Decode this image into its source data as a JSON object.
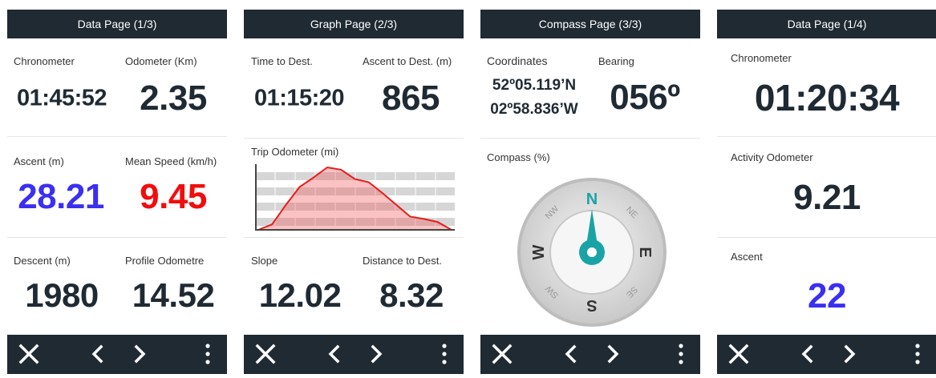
{
  "screens": [
    {
      "title": "Data Page (1/3)",
      "fields": [
        {
          "label": "Chronometer",
          "value": "01:45:52"
        },
        {
          "label": "Odometer (Km)",
          "value": "2.35"
        },
        {
          "label": "Ascent (m)",
          "value": "28.21"
        },
        {
          "label": "Mean Speed (km/h)",
          "value": "9.45"
        },
        {
          "label": "Descent (m)",
          "value": "1980"
        },
        {
          "label": "Profile Odometre",
          "value": "14.52"
        }
      ]
    },
    {
      "title": "Graph Page (2/3)",
      "fields": [
        {
          "label": "Time to Dest.",
          "value": "01:15:20"
        },
        {
          "label": "Ascent to Dest. (m)",
          "value": "865"
        },
        {
          "label": "Slope",
          "value": "12.02"
        },
        {
          "label": "Distance to Dest.",
          "value": "8.32"
        }
      ],
      "graph": {
        "label": "Trip Odometer (mi)",
        "values": [
          0,
          7,
          32,
          55,
          67,
          80,
          77,
          65,
          61,
          47,
          32,
          17,
          14,
          10,
          0
        ]
      }
    },
    {
      "title": "Compass Page (3/3)",
      "coordinates": {
        "label": "Coordinates",
        "lines": [
          "52º05.119’N",
          "02º58.836’W"
        ]
      },
      "bearing": {
        "label": "Bearing",
        "value": "056º"
      },
      "compass": {
        "label": "Compass (%)",
        "directions": [
          "N",
          "NE",
          "E",
          "SE",
          "S",
          "SW",
          "W",
          "NW"
        ]
      }
    },
    {
      "title": "Data Page (1/4)",
      "fields": [
        {
          "label": "Chronometer",
          "value": "01:20:34"
        },
        {
          "label": "Activity Odometer",
          "value": "9.21"
        },
        {
          "label": "Ascent",
          "value": "22"
        }
      ]
    }
  ]
}
